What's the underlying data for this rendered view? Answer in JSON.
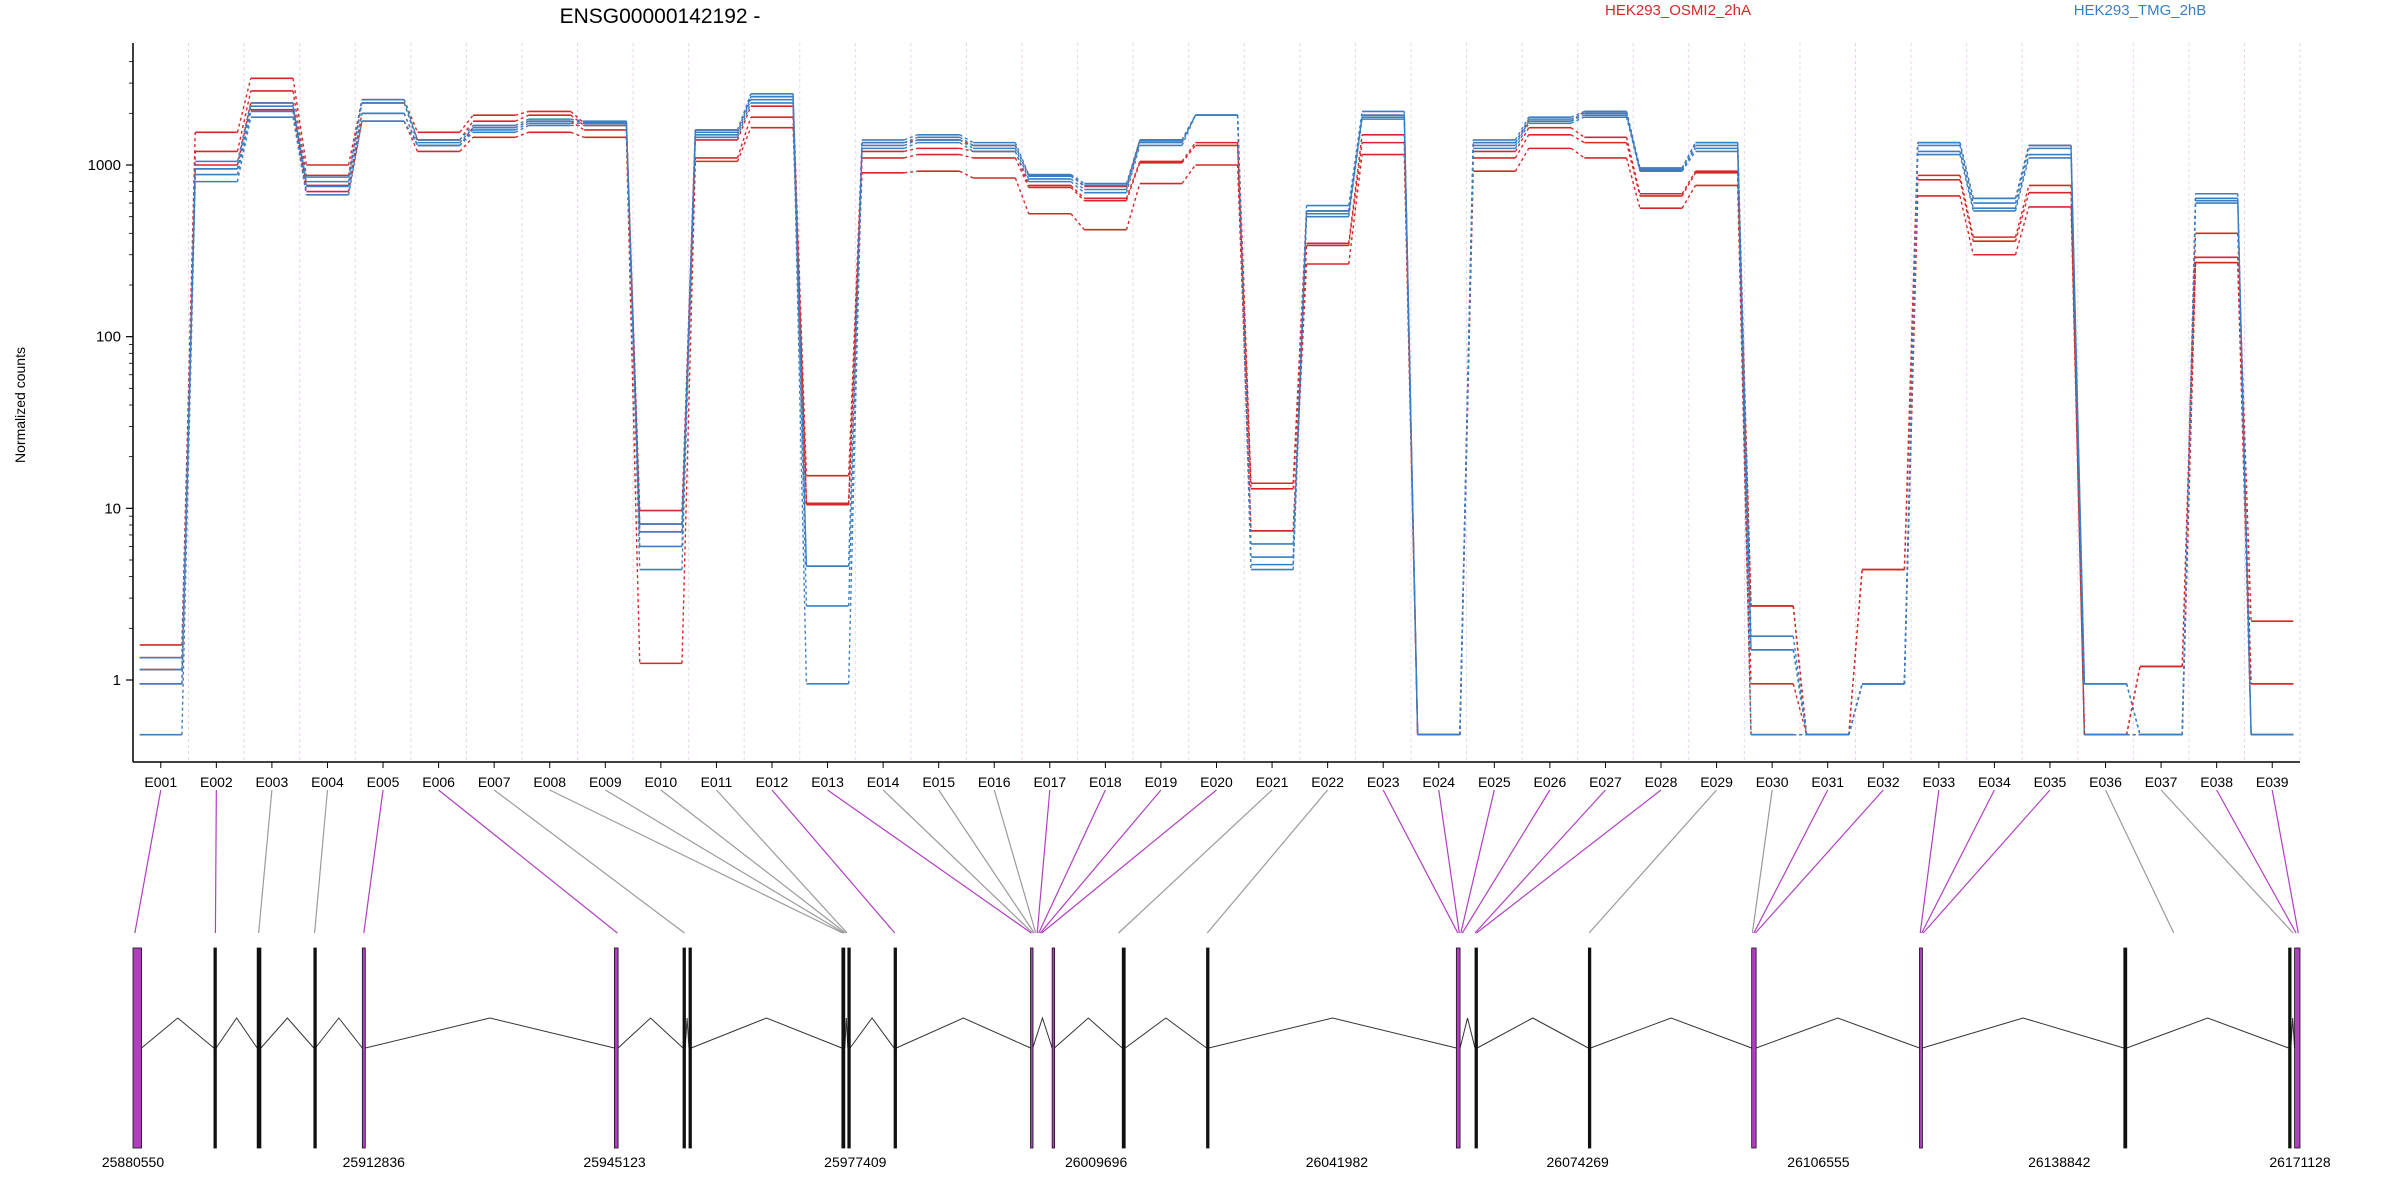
{
  "chart_data": {
    "type": "line",
    "title": "ENSG00000142192 -",
    "ylabel": "Normalized counts",
    "yscale": "log",
    "ylim": [
      0.4,
      4000
    ],
    "yticks": [
      1,
      10,
      100,
      1000
    ],
    "ytick_labels": [
      "1",
      "10",
      "100",
      "1000"
    ],
    "grid": "vertical dotted lines at exon boundaries",
    "legend": [
      {
        "name": "HEK293_OSMI2_2hA",
        "color": "#d62728",
        "position": "top-center-right"
      },
      {
        "name": "HEK293_TMG_2hB",
        "color": "#3a7fc1",
        "position": "top-right"
      }
    ],
    "categories": [
      "E001",
      "E002",
      "E003",
      "E004",
      "E005",
      "E006",
      "E007",
      "E008",
      "E009",
      "E010",
      "E011",
      "E012",
      "E013",
      "E014",
      "E015",
      "E016",
      "E017",
      "E018",
      "E019",
      "E020",
      "E021",
      "E022",
      "E023",
      "E024",
      "E025",
      "E026",
      "E027",
      "E028",
      "E029",
      "E030",
      "E031",
      "E032",
      "E033",
      "E034",
      "E035",
      "E036",
      "E037",
      "E038",
      "E039"
    ],
    "series": [
      {
        "name": "HEK293_OSMI2_2hA",
        "color": "#d62728",
        "values": [
          1.6,
          1550,
          3200,
          1000,
          2400,
          1550,
          1950,
          2050,
          1750,
          9.7,
          1600,
          2500,
          15.5,
          1350,
          1400,
          1300,
          870,
          750,
          1400,
          1950,
          14,
          540,
          1950,
          0.48,
          1350,
          1800,
          2050,
          960,
          1350,
          2.7,
          0.48,
          4.4,
          1350,
          640,
          1300,
          0.48,
          1.2,
          400,
          2.2
        ]
      },
      {
        "name": "HEK293_OSMI2_2hA",
        "color": "#d62728",
        "values": [
          1.35,
          1200,
          2700,
          870,
          2300,
          1400,
          1800,
          1950,
          1700,
          8.1,
          1400,
          2200,
          10.7,
          1200,
          1250,
          1200,
          760,
          640,
          1050,
          1350,
          13,
          350,
          1500,
          0.48,
          1200,
          1650,
          1450,
          680,
          920,
          2.7,
          0.48,
          4.4,
          870,
          380,
          760,
          0.48,
          1.2,
          290,
          0.95
        ]
      },
      {
        "name": "HEK293_OSMI2_2hA",
        "color": "#d62728",
        "values": [
          1.15,
          1000,
          2300,
          760,
          2000,
          1300,
          1650,
          1800,
          1600,
          7.3,
          1100,
          1900,
          10.5,
          1100,
          1150,
          1100,
          740,
          620,
          1030,
          1300,
          7.4,
          340,
          1350,
          0.48,
          1100,
          1500,
          1350,
          660,
          900,
          0.95,
          0.48,
          0.95,
          820,
          360,
          690,
          0.48,
          0.48,
          270,
          0.95
        ]
      },
      {
        "name": "HEK293_OSMI2_2hA",
        "color": "#d62728",
        "values": [
          0.95,
          950,
          2100,
          700,
          1800,
          1200,
          1450,
          1550,
          1450,
          1.25,
          1050,
          1650,
          10.5,
          900,
          920,
          840,
          520,
          420,
          780,
          1000,
          7.4,
          265,
          1150,
          0.48,
          920,
          1250,
          1100,
          560,
          760,
          0.48,
          0.48,
          0.95,
          660,
          300,
          570,
          0.48,
          0.48,
          270,
          0.48
        ]
      },
      {
        "name": "HEK293_TMG_2hB",
        "color": "#3a7fc1",
        "values": [
          1.35,
          1050,
          2300,
          850,
          2400,
          1400,
          1700,
          1850,
          1800,
          8.1,
          1600,
          2600,
          4.6,
          1400,
          1500,
          1350,
          880,
          780,
          1400,
          1950,
          6.2,
          580,
          2050,
          0.48,
          1400,
          1900,
          2050,
          960,
          1350,
          1.8,
          0.48,
          0.95,
          1350,
          640,
          1300,
          0.95,
          0.48,
          680,
          0.48
        ]
      },
      {
        "name": "HEK293_TMG_2hB",
        "color": "#3a7fc1",
        "values": [
          1.15,
          950,
          2200,
          800,
          2300,
          1350,
          1650,
          1800,
          1780,
          7.3,
          1550,
          2500,
          4.6,
          1350,
          1450,
          1300,
          860,
          760,
          1380,
          1950,
          5.2,
          540,
          1950,
          0.48,
          1350,
          1850,
          2000,
          940,
          1300,
          1.5,
          0.48,
          0.95,
          1300,
          600,
          1250,
          0.95,
          0.48,
          640,
          0.48
        ]
      },
      {
        "name": "HEK293_TMG_2hB",
        "color": "#3a7fc1",
        "values": [
          0.95,
          880,
          2050,
          750,
          2000,
          1300,
          1600,
          1750,
          1750,
          6.0,
          1500,
          2400,
          2.7,
          1300,
          1400,
          1250,
          830,
          720,
          1350,
          1950,
          4.7,
          520,
          1900,
          0.48,
          1300,
          1800,
          1950,
          930,
          1250,
          1.5,
          0.48,
          0.95,
          1200,
          560,
          1150,
          0.95,
          0.48,
          620,
          0.48
        ]
      },
      {
        "name": "HEK293_TMG_2hB",
        "color": "#3a7fc1",
        "values": [
          0.48,
          800,
          1900,
          670,
          1800,
          1300,
          1550,
          1700,
          1700,
          4.4,
          1450,
          2300,
          0.95,
          1250,
          1350,
          1200,
          800,
          690,
          1300,
          1950,
          4.4,
          500,
          1850,
          0.48,
          1250,
          1750,
          1900,
          920,
          1200,
          0.48,
          0.48,
          0.95,
          1150,
          540,
          1100,
          0.48,
          0.48,
          600,
          0.48
        ]
      }
    ],
    "genomic_axis": {
      "tick_labels": [
        "25880550",
        "25912836",
        "25945123",
        "25977409",
        "26009696",
        "26041982",
        "26074269",
        "26106555",
        "26138842",
        "26171128"
      ],
      "range": [
        25880550,
        26171128
      ]
    },
    "exon_highlight_color": "#b03fc0",
    "exon_genomic_positions": [
      {
        "exon": "E001",
        "pos": 25880800,
        "highlight": true
      },
      {
        "exon": "E002",
        "pos": 25891600,
        "highlight": true
      },
      {
        "exon": "E003",
        "pos": 25897400,
        "highlight": false
      },
      {
        "exon": "E004",
        "pos": 25904900,
        "highlight": false
      },
      {
        "exon": "E005",
        "pos": 25911500,
        "highlight": true
      },
      {
        "exon": "E006",
        "pos": 25945500,
        "highlight": true
      },
      {
        "exon": "E007",
        "pos": 25954500,
        "highlight": false
      },
      {
        "exon": "E008",
        "pos": 25975700,
        "highlight": false
      },
      {
        "exon": "E009",
        "pos": 25975900,
        "highlight": false
      },
      {
        "exon": "E010",
        "pos": 25976100,
        "highlight": false
      },
      {
        "exon": "E011",
        "pos": 25976300,
        "highlight": false
      },
      {
        "exon": "E012",
        "pos": 25982700,
        "highlight": true
      },
      {
        "exon": "E013",
        "pos": 26001000,
        "highlight": true
      },
      {
        "exon": "E014",
        "pos": 26001200,
        "highlight": false
      },
      {
        "exon": "E015",
        "pos": 26001400,
        "highlight": false
      },
      {
        "exon": "E016",
        "pos": 26001600,
        "highlight": false
      },
      {
        "exon": "E017",
        "pos": 26001800,
        "highlight": true
      },
      {
        "exon": "E018",
        "pos": 26002000,
        "highlight": true
      },
      {
        "exon": "E019",
        "pos": 26002200,
        "highlight": true
      },
      {
        "exon": "E020",
        "pos": 26002400,
        "highlight": true
      },
      {
        "exon": "E021",
        "pos": 26012700,
        "highlight": false
      },
      {
        "exon": "E022",
        "pos": 26024600,
        "highlight": false
      },
      {
        "exon": "E023",
        "pos": 26058200,
        "highlight": true
      },
      {
        "exon": "E024",
        "pos": 26058400,
        "highlight": true
      },
      {
        "exon": "E025",
        "pos": 26058600,
        "highlight": true
      },
      {
        "exon": "E026",
        "pos": 26058800,
        "highlight": true
      },
      {
        "exon": "E027",
        "pos": 26060500,
        "highlight": true
      },
      {
        "exon": "E028",
        "pos": 26060700,
        "highlight": true
      },
      {
        "exon": "E029",
        "pos": 26075800,
        "highlight": false
      },
      {
        "exon": "E030",
        "pos": 26097700,
        "highlight": false
      },
      {
        "exon": "E031",
        "pos": 26097900,
        "highlight": true
      },
      {
        "exon": "E032",
        "pos": 26098100,
        "highlight": true
      },
      {
        "exon": "E033",
        "pos": 26120200,
        "highlight": true
      },
      {
        "exon": "E034",
        "pos": 26120400,
        "highlight": true
      },
      {
        "exon": "E035",
        "pos": 26120600,
        "highlight": true
      },
      {
        "exon": "E036",
        "pos": 26154200,
        "highlight": false
      },
      {
        "exon": "E037",
        "pos": 26170200,
        "highlight": false
      },
      {
        "exon": "E038",
        "pos": 26170600,
        "highlight": true
      },
      {
        "exon": "E039",
        "pos": 26170900,
        "highlight": true
      }
    ],
    "gene_model_exons": [
      {
        "start": 25880550,
        "end": 25881700,
        "highlight": true
      },
      {
        "start": 25891400,
        "end": 25891700,
        "highlight": false
      },
      {
        "start": 25897200,
        "end": 25897700,
        "highlight": false
      },
      {
        "start": 25904800,
        "end": 25905000,
        "highlight": false
      },
      {
        "start": 25911300,
        "end": 25911700,
        "highlight": true
      },
      {
        "start": 25945100,
        "end": 25945600,
        "highlight": true
      },
      {
        "start": 25954300,
        "end": 25954600,
        "highlight": false
      },
      {
        "start": 25955100,
        "end": 25955400,
        "highlight": false
      },
      {
        "start": 25975600,
        "end": 25976000,
        "highlight": false
      },
      {
        "start": 25976400,
        "end": 25976700,
        "highlight": false
      },
      {
        "start": 25982600,
        "end": 25982900,
        "highlight": false
      },
      {
        "start": 26000900,
        "end": 26001200,
        "highlight": true
      },
      {
        "start": 26003800,
        "end": 26004100,
        "highlight": true
      },
      {
        "start": 26013200,
        "end": 26013600,
        "highlight": false
      },
      {
        "start": 26024500,
        "end": 26024800,
        "highlight": false
      },
      {
        "start": 26058000,
        "end": 26058500,
        "highlight": true
      },
      {
        "start": 26060500,
        "end": 26060800,
        "highlight": false
      },
      {
        "start": 26075700,
        "end": 26076000,
        "highlight": false
      },
      {
        "start": 26097600,
        "end": 26098200,
        "highlight": true
      },
      {
        "start": 26120100,
        "end": 26120500,
        "highlight": true
      },
      {
        "start": 26147500,
        "end": 26147900,
        "highlight": false
      },
      {
        "start": 26169600,
        "end": 26169900,
        "highlight": false
      },
      {
        "start": 26170400,
        "end": 26171128,
        "highlight": true
      }
    ]
  }
}
